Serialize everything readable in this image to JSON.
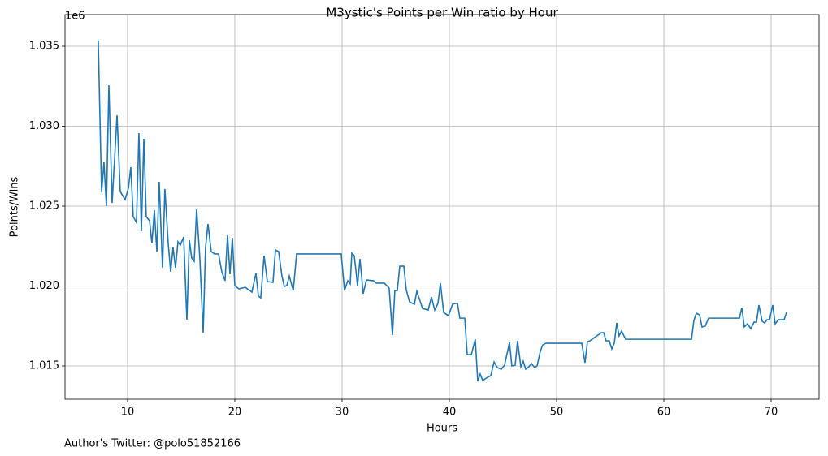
{
  "chart_data": {
    "type": "line",
    "title": "M3ystic's Points per Win ratio by Hour",
    "xlabel": "Hours",
    "ylabel": "Points/Wins",
    "y_offset_label": "1e6",
    "footnote": "Author's Twitter: @polo51852166",
    "color": "#1f77b4",
    "grid": true,
    "xlim": [
      4.17,
      74.47
    ],
    "ylim": [
      1.01292,
      1.03698
    ],
    "xticks": [
      10,
      20,
      30,
      40,
      50,
      60,
      70
    ],
    "yticks": [
      1.015,
      {
        "value": 1.02,
        "label": "1.020"
      },
      1.025,
      {
        "value": 1.03,
        "label": "1.030"
      },
      1.035
    ],
    "x": [
      7.27,
      7.58,
      7.8,
      8.03,
      8.26,
      8.56,
      9.02,
      9.32,
      9.77,
      10.08,
      10.3,
      10.53,
      10.83,
      11.06,
      11.29,
      11.52,
      11.74,
      12.05,
      12.27,
      12.5,
      12.73,
      12.95,
      13.26,
      13.48,
      13.79,
      14.02,
      14.24,
      14.47,
      14.7,
      14.92,
      15.23,
      15.53,
      15.76,
      15.98,
      16.21,
      16.44,
      16.74,
      17.05,
      17.27,
      17.5,
      17.8,
      18.11,
      18.48,
      18.79,
      19.09,
      19.32,
      19.55,
      19.77,
      20.0,
      20.38,
      20.98,
      21.59,
      21.97,
      22.2,
      22.42,
      22.73,
      23.03,
      23.56,
      23.79,
      24.09,
      24.39,
      24.62,
      24.85,
      25.08,
      25.45,
      25.76,
      29.92,
      30.23,
      30.53,
      30.76,
      30.91,
      31.14,
      31.44,
      31.67,
      31.97,
      32.27,
      32.95,
      33.18,
      33.94,
      34.39,
      34.7,
      34.92,
      35.15,
      35.38,
      35.76,
      35.98,
      36.29,
      36.74,
      36.97,
      37.5,
      38.03,
      38.33,
      38.64,
      38.94,
      39.17,
      39.47,
      39.92,
      40.3,
      40.53,
      40.76,
      40.98,
      41.44,
      41.67,
      42.05,
      42.42,
      42.65,
      42.88,
      43.11,
      43.56,
      43.86,
      44.17,
      44.47,
      44.85,
      45.15,
      45.61,
      45.83,
      46.14,
      46.36,
      46.67,
      46.89,
      47.12,
      47.42,
      47.65,
      47.95,
      48.18,
      48.48,
      48.71,
      49.02,
      52.35,
      52.65,
      52.88,
      53.11,
      53.64,
      54.17,
      54.39,
      54.62,
      54.92,
      55.15,
      55.38,
      55.61,
      55.83,
      56.06,
      56.44,
      62.58,
      62.8,
      63.03,
      63.33,
      63.56,
      63.86,
      64.17,
      67.05,
      67.27,
      67.5,
      67.8,
      68.11,
      68.41,
      68.64,
      68.86,
      69.17,
      69.39,
      69.62,
      69.85,
      70.15,
      70.38,
      70.68,
      71.21,
      71.44
    ],
    "values": [
      1.03536,
      1.02586,
      1.02774,
      1.025,
      1.03256,
      1.0252,
      1.03069,
      1.02591,
      1.02541,
      1.02612,
      1.02744,
      1.02434,
      1.02398,
      1.02957,
      1.02343,
      1.02921,
      1.02434,
      1.02409,
      1.02267,
      1.02475,
      1.02216,
      1.02652,
      1.02114,
      1.02607,
      1.02267,
      1.02089,
      1.02241,
      1.02114,
      1.02277,
      1.02256,
      1.02307,
      1.01789,
      1.02287,
      1.02175,
      1.02155,
      1.0248,
      1.02175,
      1.01708,
      1.02241,
      1.02388,
      1.02216,
      1.02201,
      1.02201,
      1.02089,
      1.02033,
      1.02317,
      1.02074,
      1.02302,
      1.02003,
      1.01982,
      1.01992,
      1.01962,
      1.02079,
      1.01937,
      1.01926,
      1.0219,
      1.02028,
      1.02023,
      1.02226,
      1.02216,
      1.02063,
      1.01997,
      1.02003,
      1.02063,
      1.01972,
      1.02201,
      1.02201,
      1.01972,
      1.02033,
      1.02013,
      1.02206,
      1.0219,
      1.02003,
      1.0217,
      1.01952,
      1.02038,
      1.02033,
      1.02018,
      1.02018,
      1.01987,
      1.01693,
      1.01972,
      1.01972,
      1.02124,
      1.02124,
      1.01977,
      1.01901,
      1.01886,
      1.01967,
      1.0186,
      1.0185,
      1.01931,
      1.0185,
      1.01891,
      1.02018,
      1.01835,
      1.01815,
      1.01886,
      1.01891,
      1.01891,
      1.01799,
      1.01799,
      1.01571,
      1.01571,
      1.01667,
      1.01404,
      1.01449,
      1.01409,
      1.01429,
      1.01439,
      1.01525,
      1.0149,
      1.0148,
      1.01505,
      1.01647,
      1.015,
      1.01505,
      1.01657,
      1.01495,
      1.0153,
      1.0148,
      1.01495,
      1.01515,
      1.0149,
      1.015,
      1.01591,
      1.01632,
      1.01642,
      1.01642,
      1.0152,
      1.01652,
      1.01657,
      1.01683,
      1.01708,
      1.01708,
      1.01657,
      1.01657,
      1.01607,
      1.01642,
      1.01769,
      1.01688,
      1.01718,
      1.01667,
      1.01667,
      1.01784,
      1.0183,
      1.0182,
      1.01744,
      1.01749,
      1.01799,
      1.01799,
      1.01865,
      1.01744,
      1.01764,
      1.01733,
      1.01774,
      1.01774,
      1.01881,
      1.01779,
      1.01769,
      1.01789,
      1.01789,
      1.01881,
      1.01764,
      1.01789,
      1.01789,
      1.01835
    ]
  }
}
